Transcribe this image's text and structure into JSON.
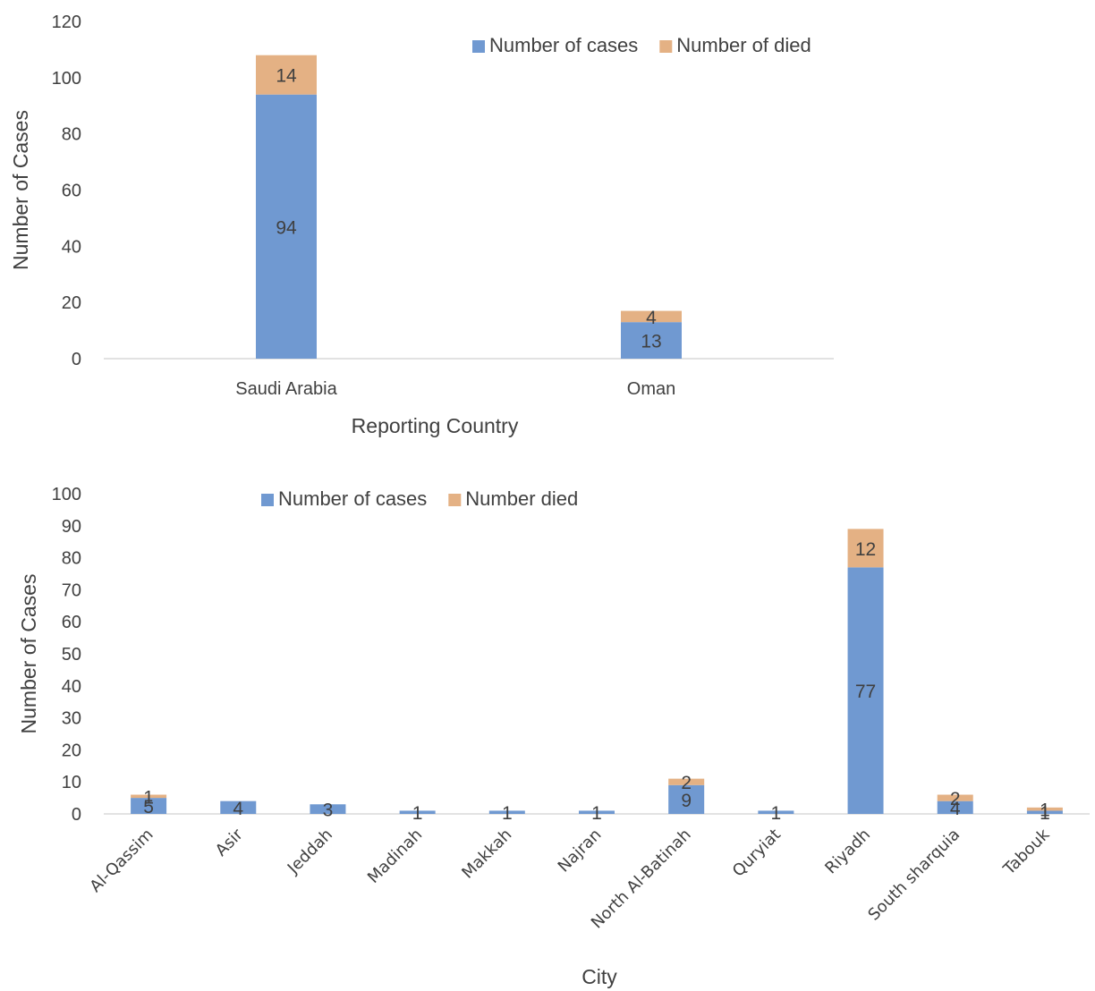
{
  "colors": {
    "cases": "#7099d1",
    "died": "#e4b184",
    "axis": "#d9d9d9",
    "text": "#404040"
  },
  "chart_data": [
    {
      "type": "bar",
      "stacked": true,
      "categories": [
        "Saudi Arabia",
        "Oman"
      ],
      "series": [
        {
          "name": "Number of cases",
          "values": [
            94,
            13
          ]
        },
        {
          "name": "Number of died",
          "values": [
            14,
            4
          ]
        }
      ],
      "xlabel": "Reporting Country",
      "ylabel": "Number of Cases",
      "ylim": [
        0,
        120
      ],
      "yticks": [
        0,
        20,
        40,
        60,
        80,
        100,
        120
      ],
      "grid": false,
      "legend": "top-right"
    },
    {
      "type": "bar",
      "stacked": true,
      "categories": [
        "Al-Qassim",
        "Asir",
        "Jeddah",
        "Madinah",
        "Makkah",
        "Najran",
        "North Al-Batinah",
        "Quryiat",
        "Riyadh",
        "South sharquia",
        "Tabouk"
      ],
      "series": [
        {
          "name": "Number of cases",
          "values": [
            5,
            4,
            3,
            1,
            1,
            1,
            9,
            1,
            77,
            4,
            1
          ]
        },
        {
          "name": "Number died",
          "values": [
            1,
            0,
            0,
            0,
            0,
            0,
            2,
            0,
            12,
            2,
            1
          ]
        }
      ],
      "xlabel": "City",
      "ylabel": "Number of Cases",
      "ylim": [
        0,
        100
      ],
      "yticks": [
        0,
        10,
        20,
        30,
        40,
        50,
        60,
        70,
        80,
        90,
        100
      ],
      "grid": false,
      "legend": "top-center"
    }
  ]
}
